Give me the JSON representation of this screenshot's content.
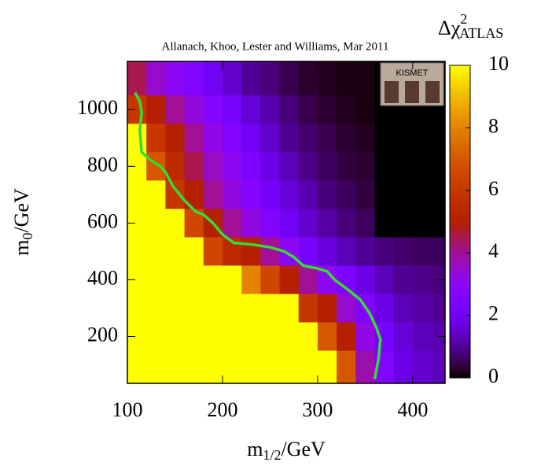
{
  "chart_data": {
    "type": "heatmap",
    "title": "Allanach, Khoo, Lester and Williams, Mar 2011",
    "x_label": {
      "base": "m",
      "sub": "1/2",
      "unit": "/GeV"
    },
    "y_label": {
      "base": "m",
      "sub": "0",
      "unit": "/GeV"
    },
    "colorbar_label": {
      "base": "Δχ",
      "sup": "2",
      "sub": "ATLAS"
    },
    "logo_text": "KISMET",
    "xlim": [
      100,
      434
    ],
    "xticks": [
      100,
      200,
      300,
      400
    ],
    "ylim": [
      35,
      1170
    ],
    "yticks": [
      200,
      400,
      600,
      800,
      1000
    ],
    "clim": [
      0,
      10
    ],
    "cticks": [
      0,
      2,
      4,
      6,
      8,
      10
    ],
    "x": [
      110,
      130,
      150,
      170,
      190,
      210,
      230,
      250,
      270,
      290,
      310,
      330,
      350,
      370,
      390,
      410,
      430
    ],
    "y": [
      1100,
      1000,
      900,
      800,
      700,
      600,
      500,
      400,
      300,
      200,
      100
    ],
    "z": [
      [
        4.5,
        3.5,
        3,
        2.5,
        2,
        1.5,
        1,
        0.8,
        0.5,
        0.3,
        0.2,
        0.1,
        0.1,
        0,
        0,
        0,
        0
      ],
      [
        6,
        5,
        4,
        3.3,
        2.7,
        2.2,
        1.6,
        1.2,
        0.8,
        0.5,
        0.3,
        0.2,
        0.1,
        0,
        0,
        0,
        0
      ],
      [
        10,
        6,
        5,
        4,
        3.2,
        2.6,
        2,
        1.5,
        1,
        0.7,
        0.5,
        0.3,
        0.2,
        0,
        0,
        0,
        0
      ],
      [
        10,
        7,
        5.5,
        4.5,
        3.6,
        3,
        2.4,
        1.8,
        1.3,
        0.9,
        0.6,
        0.4,
        0.3,
        0,
        0,
        0,
        0
      ],
      [
        10,
        10,
        6,
        5,
        4,
        3.3,
        2.7,
        2.1,
        1.6,
        1.2,
        0.8,
        0.6,
        0.4,
        0,
        0,
        0,
        0
      ],
      [
        10,
        10,
        10,
        6.5,
        5,
        4,
        3.3,
        2.6,
        2,
        1.5,
        1.1,
        0.8,
        0.6,
        0,
        0,
        0,
        0
      ],
      [
        10,
        10,
        10,
        10,
        6.5,
        5.5,
        5,
        4,
        3,
        2.3,
        1.7,
        1.3,
        1,
        0.8,
        0.7,
        0.6,
        0.6
      ],
      [
        10,
        10,
        10,
        10,
        10,
        10,
        8,
        6.5,
        5,
        4,
        3,
        2.4,
        1.8,
        1.3,
        1,
        0.9,
        0.8
      ],
      [
        10,
        10,
        10,
        10,
        10,
        10,
        10,
        10,
        10,
        6,
        5,
        3.5,
        2.6,
        1.8,
        1.3,
        1.1,
        1
      ],
      [
        10,
        10,
        10,
        10,
        10,
        10,
        10,
        10,
        10,
        10,
        7,
        5,
        3.2,
        2.2,
        1.6,
        1.3,
        1.2
      ],
      [
        10,
        10,
        10,
        10,
        10,
        10,
        10,
        10,
        10,
        10,
        10,
        7,
        3.8,
        2.5,
        1.8,
        1.5,
        1.3
      ]
    ],
    "contour": {
      "color": "#33dd33",
      "x": [
        108,
        113,
        115,
        113,
        115,
        125,
        135,
        140,
        148,
        160,
        172,
        180,
        190,
        200,
        212,
        230,
        250,
        265,
        275,
        285,
        300,
        310,
        318,
        330,
        345,
        355,
        362,
        366,
        364,
        360
      ],
      "y": [
        1060,
        1030,
        990,
        930,
        850,
        820,
        800,
        780,
        730,
        680,
        640,
        630,
        600,
        560,
        530,
        525,
        515,
        500,
        480,
        450,
        440,
        430,
        400,
        370,
        330,
        280,
        230,
        190,
        120,
        50
      ]
    }
  }
}
